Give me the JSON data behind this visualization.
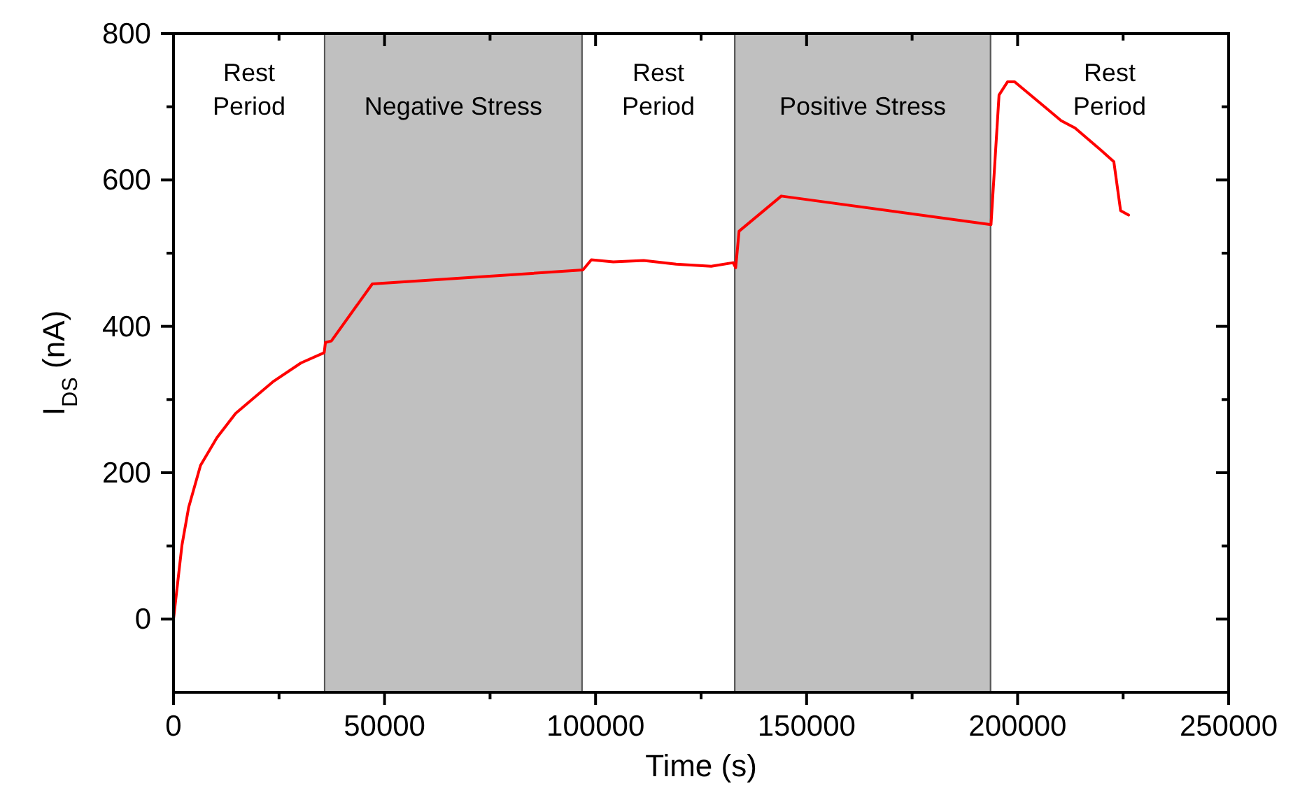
{
  "chart_data": {
    "type": "line",
    "xlabel": "Time (s)",
    "ylabel": "I$_{DS}$ (nA)",
    "xlim": [
      0,
      250000
    ],
    "ylim": [
      -100,
      800
    ],
    "xticks": [
      0,
      {
        "value": 25000,
        "label": null
      },
      50000,
      {
        "value": 75000,
        "label": null
      },
      100000,
      {
        "value": 125000,
        "label": null
      },
      150000,
      {
        "value": 175000,
        "label": null
      },
      200000,
      {
        "value": 225000,
        "label": null
      },
      250000
    ],
    "yticks": [
      0,
      {
        "value": 100,
        "label": null
      },
      200,
      {
        "value": 300,
        "label": null
      },
      400,
      {
        "value": 500,
        "label": null
      },
      600,
      {
        "value": 700,
        "label": null
      },
      800
    ],
    "grid": false,
    "marker": "none",
    "line_style": "solid",
    "bands": [
      {
        "axis": "x",
        "from": 0,
        "to": 35800,
        "label": "Rest\nPeriod",
        "color": "#ffffff"
      },
      {
        "axis": "x",
        "from": 35800,
        "to": 96800,
        "label": "Negative Stress",
        "color": "#c0c0c0"
      },
      {
        "axis": "x",
        "from": 96800,
        "to": 133000,
        "label": "Rest\nPeriod",
        "color": "#ffffff"
      },
      {
        "axis": "x",
        "from": 133000,
        "to": 193600,
        "label": "Positive Stress",
        "color": "#c0c0c0"
      },
      {
        "axis": "x",
        "from": 193600,
        "to": 250000,
        "label": "Rest\nPeriod",
        "color": "#ffffff"
      }
    ],
    "series": [
      {
        "color": "#ff0000",
        "x": [
          0,
          2000,
          3600,
          6400,
          10300,
          14700,
          18600,
          23500,
          30200,
          35700,
          36000,
          37400,
          47100,
          97000,
          99000,
          104200,
          111400,
          119100,
          127400,
          132600,
          133200,
          134000,
          144000,
          193700,
          195600,
          197600,
          199300,
          207000,
          210300,
          213600,
          219700,
          222800,
          224400,
          226300
        ],
        "values": [
          0,
          101,
          153,
          210,
          248,
          281,
          300,
          324,
          350,
          364,
          378,
          380,
          458,
          477,
          491,
          488,
          490,
          485,
          482,
          487,
          480,
          530,
          578,
          539,
          716,
          734,
          734,
          697,
          681,
          671,
          641,
          625,
          558,
          552
        ]
      }
    ]
  }
}
